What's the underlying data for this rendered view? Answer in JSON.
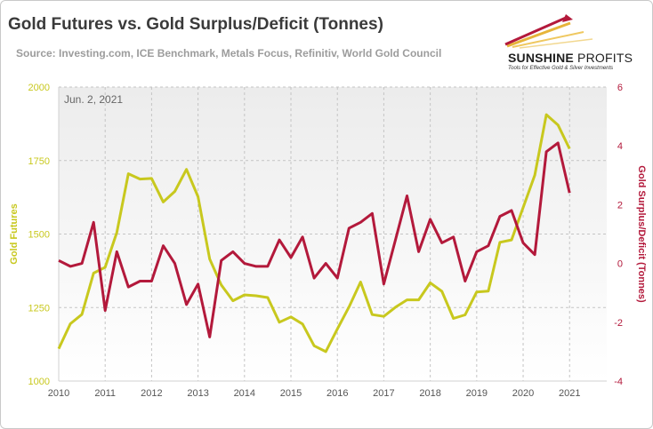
{
  "header": {
    "title": "Gold Futures vs. Gold Surplus/Deficit (Tonnes)",
    "subtitle": "Source: Investing.com, ICE Benchmark,  Metals Focus, Refinitiv, World Gold Council"
  },
  "logo": {
    "name_bold": "SUNSHINE",
    "name_light": " PROFITS",
    "tagline": "Tools for Effective Gold & Silver Investments"
  },
  "colors": {
    "gold_series": "#c8c81e",
    "surplus_series": "#b3193b",
    "grid": "#c4c4c4",
    "plot_bg_top": "#ececec",
    "plot_bg_bottom": "#ffffff"
  },
  "chart_data": {
    "type": "line",
    "annotation": "Jun. 2, 2021",
    "x_ticks": [
      "2010",
      "2011",
      "2012",
      "2013",
      "2014",
      "2015",
      "2016",
      "2017",
      "2018",
      "2019",
      "2020",
      "2021"
    ],
    "xlim": [
      2010.0,
      2021.8
    ],
    "y_left": {
      "label": "Gold Futures",
      "ticks": [
        "1000",
        "1250",
        "1500",
        "1750",
        "2000"
      ],
      "lim": [
        1000,
        2000
      ]
    },
    "y_right": {
      "label": "Gold Surplus/Deficit (Tonnes)",
      "ticks": [
        "-4",
        "-2",
        "0",
        "2",
        "4",
        "6"
      ],
      "lim": [
        -4,
        6
      ]
    },
    "grid": true,
    "x": [
      2010.0,
      2010.25,
      2010.5,
      2010.75,
      2011.0,
      2011.25,
      2011.5,
      2011.75,
      2012.0,
      2012.25,
      2012.5,
      2012.75,
      2013.0,
      2013.25,
      2013.5,
      2013.75,
      2014.0,
      2014.25,
      2014.5,
      2014.75,
      2015.0,
      2015.25,
      2015.5,
      2015.75,
      2016.0,
      2016.25,
      2016.5,
      2016.75,
      2017.0,
      2017.25,
      2017.5,
      2017.75,
      2018.0,
      2018.25,
      2018.5,
      2018.75,
      2019.0,
      2019.25,
      2019.5,
      2019.75,
      2020.0,
      2020.25,
      2020.5,
      2020.75,
      2021.0
    ],
    "series": [
      {
        "name": "Gold Futures",
        "axis": "left",
        "values": [
          1110,
          1195,
          1227,
          1367,
          1387,
          1505,
          1705,
          1687,
          1689,
          1609,
          1645,
          1720,
          1627,
          1415,
          1327,
          1273,
          1293,
          1290,
          1284,
          1200,
          1218,
          1194,
          1120,
          1100,
          1177,
          1252,
          1337,
          1226,
          1220,
          1251,
          1276,
          1276,
          1334,
          1305,
          1213,
          1225,
          1303,
          1306,
          1472,
          1480,
          1590,
          1700,
          1906,
          1871,
          1790
        ]
      },
      {
        "name": "Gold Surplus/Deficit (Tonnes)",
        "axis": "right",
        "values": [
          0.1,
          -0.1,
          0.0,
          1.4,
          -1.6,
          0.4,
          -0.8,
          -0.6,
          -0.6,
          0.6,
          0.0,
          -1.4,
          -0.7,
          -2.5,
          0.1,
          0.4,
          0.0,
          -0.1,
          -0.1,
          0.8,
          0.2,
          0.9,
          -0.5,
          0.0,
          -0.5,
          1.2,
          1.4,
          1.7,
          -0.7,
          0.8,
          2.3,
          0.4,
          1.5,
          0.7,
          0.9,
          -0.6,
          0.4,
          0.6,
          1.6,
          1.8,
          0.7,
          0.3,
          3.8,
          4.1,
          2.4
        ]
      }
    ]
  }
}
